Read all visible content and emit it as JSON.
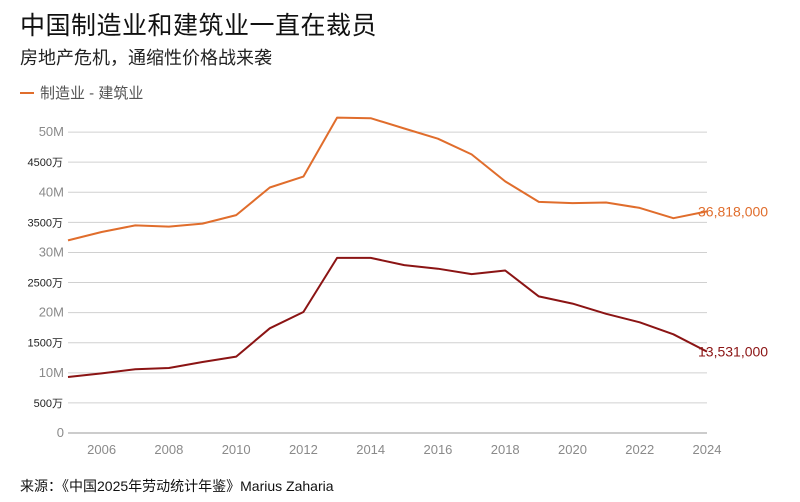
{
  "title": "中国制造业和建筑业一直在裁员",
  "subtitle": "房地产危机，通缩性价格战来袭",
  "legend": "制造业 - 建筑业",
  "source": "来源：《中国2025年劳动统计年鉴》Marius Zaharia",
  "colors": {
    "construction": "#e06d2c",
    "manufacturing": "#8b1414",
    "grid": "#d0d0d0",
    "axis": "#9a9a9a"
  },
  "chart_data": {
    "type": "line",
    "x": [
      2005,
      2006,
      2007,
      2008,
      2009,
      2010,
      2011,
      2012,
      2013,
      2014,
      2015,
      2016,
      2017,
      2018,
      2019,
      2020,
      2021,
      2022,
      2023,
      2024
    ],
    "series": [
      {
        "name": "",
        "color": "#e06d2c",
        "values": [
          32000000,
          33400000,
          34500000,
          34300000,
          34800000,
          36200000,
          40800000,
          42600000,
          52400000,
          52300000,
          50600000,
          48900000,
          46300000,
          41800000,
          38400000,
          38200000,
          38300000,
          37400000,
          35700000,
          36818000
        ],
        "end_label": "36,818,000"
      },
      {
        "name": "",
        "color": "#8b1414",
        "values": [
          9300000,
          9900000,
          10600000,
          10800000,
          11800000,
          12700000,
          17400000,
          20100000,
          29100000,
          29100000,
          27900000,
          27300000,
          26400000,
          27000000,
          22700000,
          21500000,
          19800000,
          18400000,
          16400000,
          13531000
        ],
        "end_label": "13,531,000"
      }
    ],
    "ylim": [
      0,
      55000000
    ],
    "yticks": [
      {
        "value": 0,
        "label": "0",
        "style": "plain"
      },
      {
        "value": 5000000,
        "label": "500万",
        "style": "cn"
      },
      {
        "value": 10000000,
        "label": "10M",
        "style": "plain"
      },
      {
        "value": 15000000,
        "label": "1500万",
        "style": "cn"
      },
      {
        "value": 20000000,
        "label": "20M",
        "style": "plain"
      },
      {
        "value": 25000000,
        "label": "2500万",
        "style": "cn"
      },
      {
        "value": 30000000,
        "label": "30M",
        "style": "plain"
      },
      {
        "value": 35000000,
        "label": "3500万",
        "style": "cn"
      },
      {
        "value": 40000000,
        "label": "40M",
        "style": "plain"
      },
      {
        "value": 45000000,
        "label": "4500万",
        "style": "cn"
      },
      {
        "value": 50000000,
        "label": "50M",
        "style": "plain"
      }
    ],
    "xticks": [
      2006,
      2008,
      2010,
      2012,
      2014,
      2016,
      2018,
      2020,
      2022,
      2024
    ],
    "grid": true
  }
}
